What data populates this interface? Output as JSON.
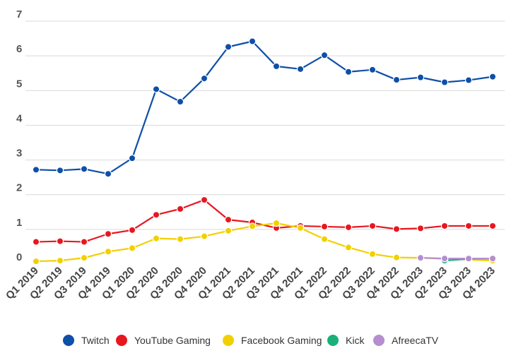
{
  "chart_data": {
    "type": "line",
    "title": "",
    "xlabel": "",
    "ylabel": "",
    "ylim": [
      0,
      7
    ],
    "yticks": [
      "0",
      "1",
      "2",
      "3",
      "4",
      "5",
      "6",
      "7"
    ],
    "grid": true,
    "legend_position": "bottom",
    "categories": [
      "Q1 2019",
      "Q2 2019",
      "Q3 2019",
      "Q4 2019",
      "Q1 2020",
      "Q2 2020",
      "Q3 2020",
      "Q4 2020",
      "Q1 2021",
      "Q2 2021",
      "Q3 2021",
      "Q4 2021",
      "Q1 2022",
      "Q2 2022",
      "Q3 2022",
      "Q4 2022",
      "Q1 2023",
      "Q2 2023",
      "Q3 2023",
      "Q4 2023"
    ],
    "series": [
      {
        "name": "Twitch",
        "color": "#0e4fa8",
        "values": [
          2.72,
          2.7,
          2.74,
          2.6,
          3.05,
          5.04,
          4.68,
          5.35,
          6.26,
          6.42,
          5.7,
          5.62,
          6.02,
          5.54,
          5.6,
          5.31,
          5.38,
          5.24,
          5.3,
          5.4
        ]
      },
      {
        "name": "YouTube Gaming",
        "color": "#e8171f",
        "values": [
          0.64,
          0.66,
          0.64,
          0.87,
          0.98,
          1.42,
          1.59,
          1.85,
          1.28,
          1.2,
          1.04,
          1.1,
          1.08,
          1.06,
          1.1,
          1.01,
          1.03,
          1.1,
          1.1,
          1.1
        ]
      },
      {
        "name": "Facebook Gaming",
        "color": "#f2d000",
        "values": [
          0.08,
          0.1,
          0.18,
          0.36,
          0.46,
          0.74,
          0.72,
          0.8,
          0.96,
          1.09,
          1.18,
          1.04,
          0.72,
          0.48,
          0.29,
          0.19,
          0.18,
          0.15,
          0.13,
          0.1
        ]
      },
      {
        "name": "Kick",
        "color": "#1ab079",
        "values": [
          null,
          null,
          null,
          null,
          null,
          null,
          null,
          null,
          null,
          null,
          null,
          null,
          null,
          null,
          null,
          null,
          null,
          0.1,
          0.15,
          0.16
        ]
      },
      {
        "name": "AfreecaTV",
        "color": "#b48ed0",
        "values": [
          null,
          null,
          null,
          null,
          null,
          null,
          null,
          null,
          null,
          null,
          null,
          null,
          null,
          null,
          null,
          null,
          0.18,
          0.16,
          0.16,
          0.16
        ]
      }
    ]
  }
}
